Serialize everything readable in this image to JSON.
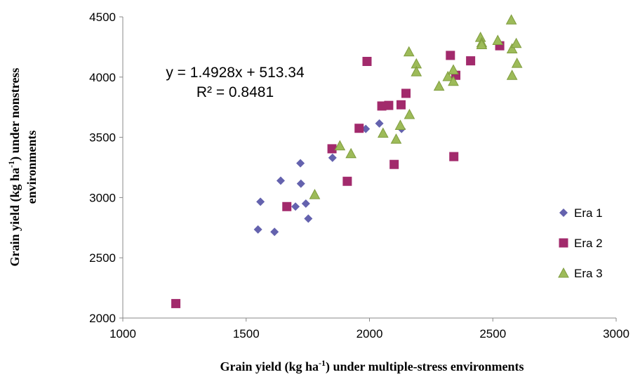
{
  "chart_data": {
    "type": "scatter",
    "xlabel_parts": [
      "Grain yield (kg ha",
      "-1",
      ") under multiple-stress  environments"
    ],
    "ylabel_line1_parts": [
      "Grain yield (kg ha",
      "-1",
      ") under nonstress"
    ],
    "ylabel_line2": "environments",
    "xlim": [
      1000,
      3000
    ],
    "ylim": [
      2000,
      4500
    ],
    "x_ticks": [
      "1000",
      "1500",
      "2000",
      "2500",
      "3000"
    ],
    "y_ticks": [
      "2000",
      "2500",
      "3000",
      "3500",
      "4000",
      "4500"
    ],
    "grid": false,
    "legend_position": "right",
    "annotations": [
      "y = 1.4928x + 513.34",
      "R² = 0.8481"
    ],
    "series": [
      {
        "name": "Era 1",
        "marker": "diamond",
        "color": "#6462AE",
        "points": [
          [
            1548,
            2735
          ],
          [
            1558,
            2965
          ],
          [
            1615,
            2715
          ],
          [
            1640,
            3140
          ],
          [
            1700,
            2925
          ],
          [
            1720,
            3285
          ],
          [
            1722,
            3115
          ],
          [
            1742,
            2950
          ],
          [
            1752,
            2825
          ],
          [
            1850,
            3330
          ],
          [
            1985,
            3570
          ],
          [
            2040,
            3615
          ],
          [
            2130,
            3570
          ]
        ]
      },
      {
        "name": "Era 2",
        "marker": "square",
        "color": "#A22A6C",
        "points": [
          [
            1215,
            2120
          ],
          [
            1665,
            2925
          ],
          [
            1848,
            3405
          ],
          [
            1910,
            3135
          ],
          [
            1958,
            3575
          ],
          [
            1990,
            4130
          ],
          [
            2050,
            3760
          ],
          [
            2078,
            3765
          ],
          [
            2100,
            3275
          ],
          [
            2128,
            3770
          ],
          [
            2148,
            3865
          ],
          [
            2328,
            4180
          ],
          [
            2342,
            3340
          ],
          [
            2350,
            4015
          ],
          [
            2410,
            4135
          ],
          [
            2528,
            4260
          ]
        ]
      },
      {
        "name": "Era 3",
        "marker": "triangle",
        "color": "#9DBB59",
        "points": [
          [
            1778,
            3025
          ],
          [
            1880,
            3430
          ],
          [
            1925,
            3365
          ],
          [
            2055,
            3535
          ],
          [
            2108,
            3485
          ],
          [
            2125,
            3600
          ],
          [
            2162,
            3690
          ],
          [
            2160,
            4210
          ],
          [
            2190,
            4110
          ],
          [
            2190,
            4045
          ],
          [
            2282,
            3925
          ],
          [
            2318,
            4005
          ],
          [
            2340,
            3965
          ],
          [
            2340,
            4060
          ],
          [
            2450,
            4330
          ],
          [
            2455,
            4285
          ],
          [
            2455,
            4270
          ],
          [
            2520,
            4305
          ],
          [
            2575,
            4475
          ],
          [
            2578,
            4235
          ],
          [
            2578,
            4015
          ],
          [
            2595,
            4280
          ],
          [
            2598,
            4115
          ]
        ]
      }
    ]
  }
}
